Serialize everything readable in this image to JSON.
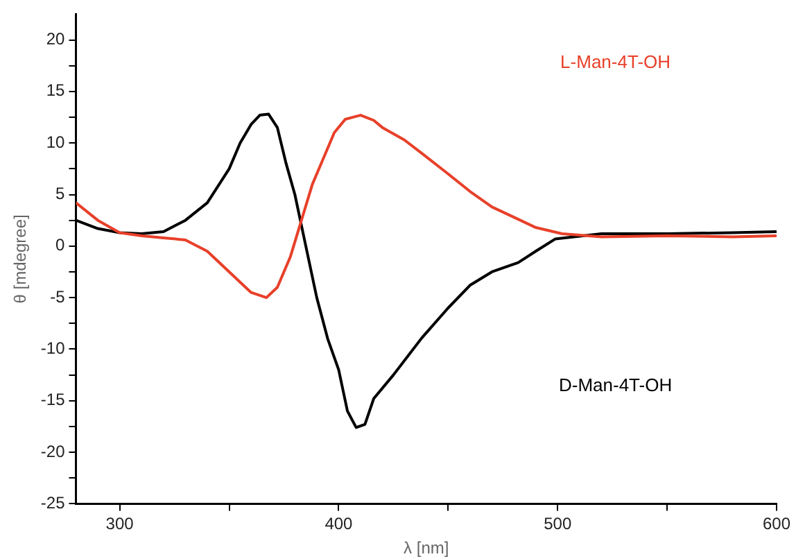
{
  "chart_data": {
    "type": "line",
    "xlabel": "λ [nm]",
    "ylabel": "θ [mdegree]",
    "xlim": [
      280,
      600
    ],
    "ylim": [
      -25,
      22.5
    ],
    "xticks": [
      300,
      {
        "value": 350,
        "label": null
      },
      400,
      {
        "value": 450,
        "label": null
      },
      500,
      {
        "value": 550,
        "label": null
      },
      600
    ],
    "yticks": [
      -25,
      {
        "value": -22.5,
        "label": null
      },
      -20,
      {
        "value": -17.5,
        "label": null
      },
      -15,
      {
        "value": -12.5,
        "label": null
      },
      -10,
      {
        "value": -7.5,
        "label": null
      },
      -5,
      {
        "value": -2.5,
        "label": null
      },
      0,
      {
        "value": 2.5,
        "label": null
      },
      5,
      {
        "value": 7.5,
        "label": null
      },
      10,
      {
        "value": 12.5,
        "label": null
      },
      15,
      {
        "value": 17.5,
        "label": null
      },
      20
    ],
    "grid": false,
    "legend": false,
    "marker": "none",
    "line_style": "solid",
    "series": [
      {
        "name": "L-Man-4T-OH",
        "color": "#e8402a",
        "x": [
          280,
          290,
          300,
          310,
          320,
          330,
          340,
          350,
          360,
          367,
          372,
          378,
          383,
          388,
          393,
          398,
          403,
          410,
          416,
          420,
          430,
          438,
          450,
          460,
          470,
          482,
          490,
          502,
          520,
          550,
          580,
          600
        ],
        "values": [
          4.2,
          2.5,
          1.3,
          1,
          0.8,
          0.6,
          -0.5,
          -2.5,
          -4.5,
          -5,
          -4,
          -1,
          2.5,
          6,
          8.5,
          11,
          12.3,
          12.7,
          12.2,
          11.5,
          10.3,
          9,
          7,
          5.3,
          3.8,
          2.6,
          1.8,
          1.2,
          0.9,
          1,
          0.9,
          1
        ]
      },
      {
        "name": "D-Man-4T-OH",
        "color": "#000000",
        "x": [
          280,
          290,
          300,
          310,
          320,
          330,
          340,
          350,
          355,
          360,
          364,
          368,
          372,
          376,
          380,
          385,
          390,
          395,
          400,
          404,
          408,
          412,
          416,
          425,
          438,
          450,
          460,
          470,
          482,
          490,
          499,
          520,
          550,
          580,
          600
        ],
        "values": [
          2.5,
          1.7,
          1.3,
          1.2,
          1.4,
          2.5,
          4.2,
          7.5,
          10,
          11.8,
          12.7,
          12.8,
          11.5,
          8,
          5,
          0,
          -5,
          -9,
          -12,
          -16,
          -17.6,
          -17.3,
          -14.8,
          -12.5,
          -8.9,
          -6,
          -3.8,
          -2.5,
          -1.6,
          -0.5,
          0.7,
          1.2,
          1.2,
          1.3,
          1.4
        ]
      }
    ]
  }
}
